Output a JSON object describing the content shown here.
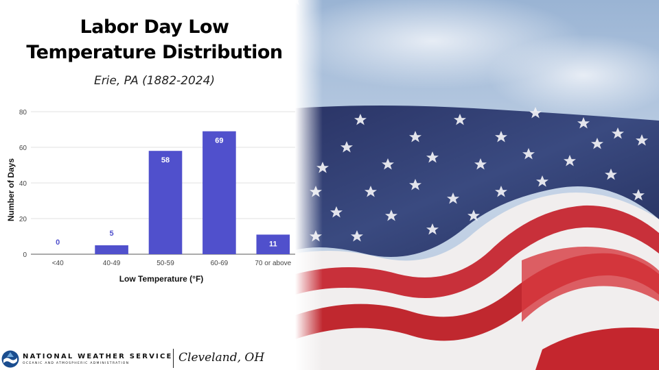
{
  "header": {
    "title_line1": "Labor Day Low",
    "title_line2": "Temperature Distribution",
    "subtitle": "Erie, PA (1882-2024)"
  },
  "chart_data": {
    "type": "bar",
    "categories": [
      "<40",
      "40-49",
      "50-59",
      "60-69",
      "70 or above"
    ],
    "values": [
      0,
      5,
      58,
      69,
      11
    ],
    "data_labels": [
      "0",
      "5",
      "58",
      "69",
      "11"
    ],
    "xlabel": "Low Temperature (°F)",
    "ylabel": "Number of Days",
    "ylim": [
      0,
      80
    ],
    "yticks": [
      0,
      20,
      40,
      60,
      80
    ],
    "grid": true,
    "bar_color": "#5050cc",
    "label_color": "#5050cc"
  },
  "footer": {
    "agency_name": "NATIONAL WEATHER SERVICE",
    "agency_sub": "OCEANIC AND ATMOSPHERIC ADMINISTRATION",
    "office": "Cleveland, OH"
  },
  "icons": {
    "agency_logo": "noaa-logo",
    "background_image": "american-flag"
  }
}
